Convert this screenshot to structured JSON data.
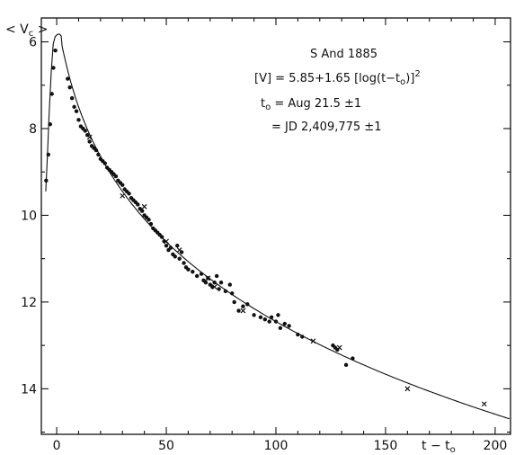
{
  "chart_data": {
    "type": "scatter",
    "title": "S And 1885",
    "xlabel": "t - t0",
    "ylabel": "<Vc>",
    "xlim": [
      -7,
      207
    ],
    "ylim": [
      15.05,
      5.45
    ],
    "x_ticks": [
      0,
      50,
      100,
      150,
      200
    ],
    "y_ticks": [
      6,
      8,
      10,
      12,
      14
    ],
    "y_inverted": true,
    "annotations": [
      "S And 1885",
      "[V] = 5.85+1.65 [log(t-t0)]2",
      "t0 = Aug 21.5 ±1",
      "= JD 2,409,775 ±1"
    ],
    "fit": {
      "formula": "[V] = 5.85 + 1.65 [log(t - t0)]^2",
      "a": 5.85,
      "b": 1.65
    },
    "series": [
      {
        "marker": "dot",
        "points": [
          [
            -4.8,
            9.2
          ],
          [
            -3.8,
            8.6
          ],
          [
            -3,
            7.9
          ],
          [
            -2.2,
            7.2
          ],
          [
            -1.5,
            6.6
          ],
          [
            -0.6,
            6.2
          ],
          [
            5,
            6.85
          ],
          [
            6,
            7.05
          ],
          [
            7,
            7.3
          ],
          [
            8,
            7.5
          ],
          [
            9,
            7.6
          ],
          [
            10,
            7.8
          ],
          [
            11,
            7.95
          ],
          [
            12,
            8.0
          ],
          [
            13,
            8.05
          ],
          [
            14,
            8.15
          ],
          [
            15,
            8.3
          ],
          [
            16,
            8.4
          ],
          [
            17,
            8.45
          ],
          [
            18,
            8.5
          ],
          [
            19,
            8.6
          ],
          [
            20,
            8.7
          ],
          [
            21,
            8.75
          ],
          [
            22,
            8.8
          ],
          [
            23,
            8.9
          ],
          [
            24,
            8.95
          ],
          [
            25,
            9.0
          ],
          [
            26,
            9.05
          ],
          [
            27,
            9.1
          ],
          [
            28,
            9.2
          ],
          [
            29,
            9.25
          ],
          [
            30,
            9.3
          ],
          [
            31,
            9.4
          ],
          [
            32,
            9.45
          ],
          [
            33,
            9.5
          ],
          [
            34,
            9.6
          ],
          [
            35,
            9.65
          ],
          [
            36,
            9.7
          ],
          [
            37,
            9.75
          ],
          [
            38,
            9.85
          ],
          [
            39,
            9.9
          ],
          [
            40,
            10.0
          ],
          [
            41,
            10.05
          ],
          [
            42,
            10.1
          ],
          [
            43,
            10.2
          ],
          [
            44,
            10.3
          ],
          [
            45,
            10.35
          ],
          [
            46,
            10.4
          ],
          [
            47,
            10.45
          ],
          [
            48,
            10.5
          ],
          [
            49,
            10.6
          ],
          [
            50,
            10.7
          ],
          [
            51,
            10.8
          ],
          [
            52,
            10.75
          ],
          [
            53,
            10.9
          ],
          [
            54,
            10.95
          ],
          [
            55,
            10.7
          ],
          [
            56,
            11.0
          ],
          [
            57,
            10.85
          ],
          [
            58,
            11.1
          ],
          [
            59,
            11.2
          ],
          [
            60,
            11.25
          ],
          [
            62,
            11.3
          ],
          [
            64,
            11.4
          ],
          [
            66,
            11.35
          ],
          [
            67,
            11.5
          ],
          [
            68,
            11.55
          ],
          [
            69,
            11.45
          ],
          [
            70,
            11.6
          ],
          [
            71,
            11.65
          ],
          [
            72,
            11.55
          ],
          [
            73,
            11.4
          ],
          [
            74,
            11.7
          ],
          [
            75,
            11.55
          ],
          [
            77,
            11.75
          ],
          [
            79,
            11.6
          ],
          [
            80,
            11.8
          ],
          [
            81,
            12.0
          ],
          [
            83,
            12.2
          ],
          [
            85,
            12.1
          ],
          [
            87,
            12.05
          ],
          [
            90,
            12.3
          ],
          [
            93,
            12.35
          ],
          [
            95,
            12.4
          ],
          [
            97,
            12.45
          ],
          [
            98,
            12.35
          ],
          [
            100,
            12.45
          ],
          [
            101,
            12.3
          ],
          [
            102,
            12.6
          ],
          [
            104,
            12.5
          ],
          [
            106,
            12.55
          ],
          [
            110,
            12.75
          ],
          [
            112,
            12.8
          ],
          [
            126,
            13.0
          ],
          [
            127,
            13.05
          ],
          [
            128,
            13.1
          ],
          [
            132,
            13.45
          ],
          [
            135,
            13.3
          ]
        ]
      },
      {
        "marker": "cross",
        "points": [
          [
            15,
            8.2
          ],
          [
            30,
            9.55
          ],
          [
            40,
            9.8
          ],
          [
            50,
            10.6
          ],
          [
            56,
            10.8
          ],
          [
            69,
            11.45
          ],
          [
            72,
            11.65
          ],
          [
            85,
            12.2
          ],
          [
            117,
            12.9
          ],
          [
            129,
            13.05
          ],
          [
            160,
            14.0
          ],
          [
            195,
            14.35
          ]
        ]
      }
    ]
  }
}
